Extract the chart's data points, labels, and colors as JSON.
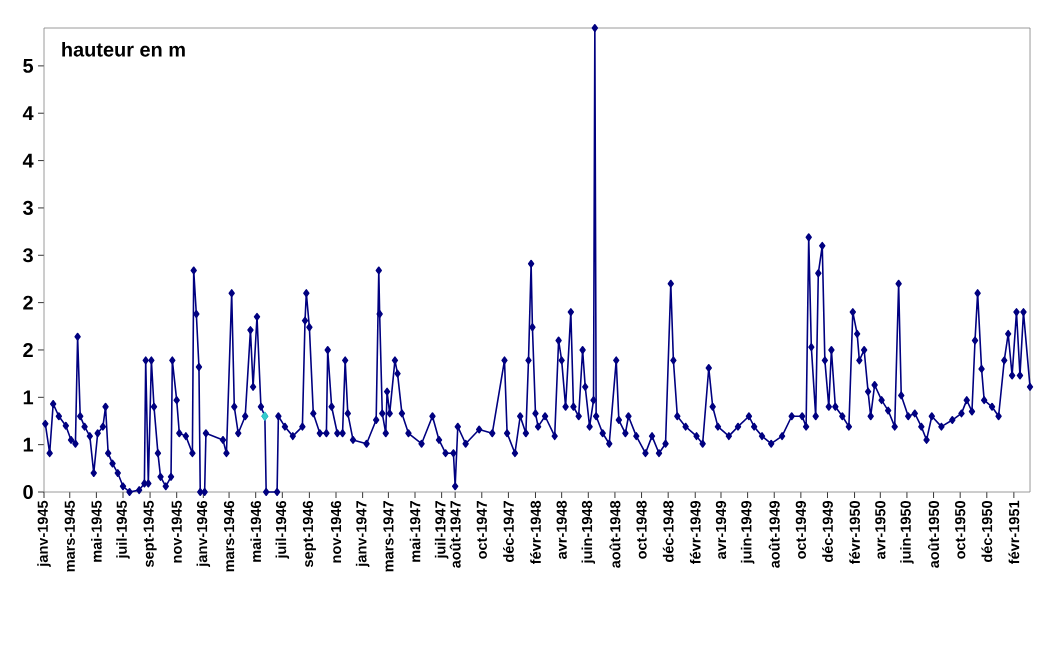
{
  "chart_data": {
    "type": "line",
    "ylabel": "hauteur en m",
    "marker": "diamond",
    "line_style": "solid",
    "xlim": [
      "1945-01-01",
      "1951-03-10"
    ],
    "ylim": [
      0,
      4.9
    ],
    "yticks": [
      0,
      {
        "value": 0.5,
        "label": "1"
      },
      1,
      {
        "value": 1.5,
        "label": "2"
      },
      2,
      {
        "value": 2.5,
        "label": "3"
      },
      3,
      {
        "value": 3.5,
        "label": "4"
      },
      4,
      {
        "value": 4.5,
        "label": "5"
      }
    ],
    "xticks": [
      {
        "value": "1945-01-01",
        "label": "janv-1945"
      },
      {
        "value": "1945-03-01",
        "label": "mars-1945"
      },
      {
        "value": "1945-05-01",
        "label": "mai-1945"
      },
      {
        "value": "1945-07-01",
        "label": "juil-1945"
      },
      {
        "value": "1945-09-01",
        "label": "sept-1945"
      },
      {
        "value": "1945-11-01",
        "label": "nov-1945"
      },
      {
        "value": "1946-01-01",
        "label": "janv-1946"
      },
      {
        "value": "1946-03-01",
        "label": "mars-1946"
      },
      {
        "value": "1946-05-01",
        "label": "mai-1946"
      },
      {
        "value": "1946-07-01",
        "label": "juil-1946"
      },
      {
        "value": "1946-09-01",
        "label": "sept-1946"
      },
      {
        "value": "1946-11-01",
        "label": "nov-1946"
      },
      {
        "value": "1947-01-01",
        "label": "janv-1947"
      },
      {
        "value": "1947-03-01",
        "label": "mars-1947"
      },
      {
        "value": "1947-05-01",
        "label": "mai-1947"
      },
      {
        "value": "1947-07-01",
        "label": "juil-1947"
      },
      {
        "value": "1947-08-01",
        "label": "août-1947"
      },
      {
        "value": "1947-10-01",
        "label": "oct-1947"
      },
      {
        "value": "1947-12-01",
        "label": "déc-1947"
      },
      {
        "value": "1948-02-01",
        "label": "févr-1948"
      },
      {
        "value": "1948-04-01",
        "label": "avr-1948"
      },
      {
        "value": "1948-06-01",
        "label": "juin-1948"
      },
      {
        "value": "1948-08-01",
        "label": "août-1948"
      },
      {
        "value": "1948-10-01",
        "label": "oct-1948"
      },
      {
        "value": "1948-12-01",
        "label": "déc-1948"
      },
      {
        "value": "1949-02-01",
        "label": "févr-1949"
      },
      {
        "value": "1949-04-01",
        "label": "avr-1949"
      },
      {
        "value": "1949-06-01",
        "label": "juin-1949"
      },
      {
        "value": "1949-08-01",
        "label": "août-1949"
      },
      {
        "value": "1949-10-01",
        "label": "oct-1949"
      },
      {
        "value": "1949-12-01",
        "label": "déc-1949"
      },
      {
        "value": "1950-02-01",
        "label": "févr-1950"
      },
      {
        "value": "1950-04-01",
        "label": "avr-1950"
      },
      {
        "value": "1950-06-01",
        "label": "juin-1950"
      },
      {
        "value": "1950-08-01",
        "label": "août-1950"
      },
      {
        "value": "1950-10-01",
        "label": "oct-1950"
      },
      {
        "value": "1950-12-01",
        "label": "déc-1950"
      },
      {
        "value": "1951-02-01",
        "label": "févr-1951"
      }
    ],
    "series": [
      {
        "color": "#000080",
        "x": [
          "1945-01-04",
          "1945-01-14",
          "1945-01-22",
          "1945-02-04",
          "1945-02-20",
          "1945-03-04",
          "1945-03-14",
          "1945-03-19",
          "1945-03-25",
          "1945-04-04",
          "1945-04-16",
          "1945-04-25",
          "1945-05-04",
          "1945-05-16",
          "1945-05-22",
          "1945-05-28",
          "1945-06-07",
          "1945-06-19",
          "1945-07-01",
          "1945-07-16",
          "1945-08-07",
          "1945-08-19",
          "1945-08-22",
          "1945-08-28",
          "1945-09-04",
          "1945-09-10",
          "1945-09-19",
          "1945-09-25",
          "1945-10-07",
          "1945-10-19",
          "1945-10-22",
          "1945-11-01",
          "1945-11-07",
          "1945-11-22",
          "1945-12-07",
          "1945-12-10",
          "1945-12-16",
          "1945-12-22",
          "1945-12-25",
          "1946-01-04",
          "1946-01-07",
          "1946-02-15",
          "1946-02-23",
          "1946-03-07",
          "1946-03-13",
          "1946-03-22",
          "1946-04-07",
          "1946-04-19",
          "1946-04-25",
          "1946-05-04",
          "1946-05-13",
          "1946-05-22",
          "1946-05-25",
          "1946-06-19",
          "1946-06-22",
          "1946-07-07",
          "1946-07-25",
          "1946-08-16",
          "1946-08-22",
          "1946-08-25",
          "1946-09-01",
          "1946-09-10",
          "1946-09-25",
          "1946-10-10",
          "1946-10-13",
          "1946-10-22",
          "1946-11-04",
          "1946-11-16",
          "1946-11-22",
          "1946-11-28",
          "1946-12-10",
          "1947-01-10",
          "1947-02-01",
          "1947-02-07",
          "1947-02-09",
          "1947-02-15",
          "1947-02-23",
          "1947-02-26",
          "1947-03-04",
          "1947-03-16",
          "1947-03-22",
          "1947-04-01",
          "1947-04-16",
          "1947-05-16",
          "1947-06-10",
          "1947-06-25",
          "1947-07-10",
          "1947-07-28",
          "1947-08-01",
          "1947-08-07",
          "1947-08-25",
          "1947-09-25",
          "1947-10-25",
          "1947-11-22",
          "1947-11-28",
          "1947-12-16",
          "1947-12-28",
          "1948-01-10",
          "1948-01-16",
          "1948-01-22",
          "1948-01-25",
          "1948-02-01",
          "1948-02-07",
          "1948-02-23",
          "1948-03-16",
          "1948-03-25",
          "1948-04-01",
          "1948-04-10",
          "1948-04-22",
          "1948-04-28",
          "1948-05-10",
          "1948-05-19",
          "1948-05-25",
          "1948-06-04",
          "1948-06-13",
          "1948-06-16",
          "1948-06-19",
          "1948-07-04",
          "1948-07-19",
          "1948-08-04",
          "1948-08-10",
          "1948-08-25",
          "1948-09-01",
          "1948-09-19",
          "1948-10-10",
          "1948-10-25",
          "1948-11-10",
          "1948-11-25",
          "1948-12-07",
          "1948-12-13",
          "1948-12-22",
          "1949-01-10",
          "1949-02-04",
          "1949-02-18",
          "1949-03-04",
          "1949-03-13",
          "1949-03-25",
          "1949-04-19",
          "1949-05-10",
          "1949-06-04",
          "1949-06-16",
          "1949-07-04",
          "1949-07-25",
          "1949-08-19",
          "1949-09-10",
          "1949-10-04",
          "1949-10-13",
          "1949-10-19",
          "1949-10-25",
          "1949-11-04",
          "1949-11-10",
          "1949-11-19",
          "1949-11-25",
          "1949-12-04",
          "1949-12-10",
          "1949-12-19",
          "1950-01-04",
          "1950-01-19",
          "1950-01-28",
          "1950-02-07",
          "1950-02-12",
          "1950-02-23",
          "1950-03-04",
          "1950-03-10",
          "1950-03-19",
          "1950-04-04",
          "1950-04-19",
          "1950-05-04",
          "1950-05-13",
          "1950-05-19",
          "1950-06-04",
          "1950-06-19",
          "1950-07-04",
          "1950-07-16",
          "1950-07-28",
          "1950-08-19",
          "1950-09-13",
          "1950-10-04",
          "1950-10-16",
          "1950-10-28",
          "1950-11-04",
          "1950-11-10",
          "1950-11-19",
          "1950-11-25",
          "1950-12-13",
          "1950-12-28",
          "1951-01-10",
          "1951-01-19",
          "1951-01-28",
          "1951-02-07",
          "1951-02-15",
          "1951-02-23",
          "1951-03-10"
        ],
        "values": [
          0.72,
          0.41,
          0.93,
          0.8,
          0.7,
          0.55,
          0.51,
          1.64,
          0.8,
          0.69,
          0.59,
          0.2,
          0.62,
          0.69,
          0.9,
          0.41,
          0.3,
          0.2,
          0.06,
          0.0,
          0.02,
          0.09,
          1.39,
          0.09,
          1.39,
          0.9,
          0.41,
          0.16,
          0.06,
          0.16,
          1.39,
          0.97,
          0.62,
          0.59,
          0.41,
          2.34,
          1.88,
          1.32,
          0,
          0,
          0.62,
          0.55,
          0.41,
          2.1,
          0.9,
          0.62,
          0.8,
          1.71,
          1.11,
          1.85,
          0.9,
          0.8,
          0,
          0,
          0.8,
          0.69,
          0.59,
          0.69,
          1.81,
          2.1,
          1.74,
          0.83,
          0.62,
          0.62,
          1.5,
          0.9,
          0.62,
          0.62,
          1.39,
          0.83,
          0.55,
          0.51,
          0.76,
          2.34,
          1.88,
          0.83,
          0.62,
          1.06,
          0.83,
          1.39,
          1.25,
          0.83,
          0.62,
          0.51,
          0.8,
          0.55,
          0.41,
          0.41,
          0.06,
          0.69,
          0.51,
          0.66,
          0.62,
          1.39,
          0.62,
          0.41,
          0.8,
          0.62,
          1.39,
          2.41,
          1.74,
          0.83,
          0.69,
          0.8,
          0.59,
          1.6,
          1.39,
          0.9,
          1.9,
          0.9,
          0.8,
          1.5,
          1.11,
          0.69,
          0.97,
          4.9,
          0.8,
          0.62,
          0.51,
          1.39,
          0.76,
          0.62,
          0.8,
          0.59,
          0.41,
          0.59,
          0.41,
          0.51,
          2.2,
          1.39,
          0.8,
          0.69,
          0.59,
          0.51,
          1.31,
          0.9,
          0.69,
          0.59,
          0.69,
          0.8,
          0.69,
          0.59,
          0.51,
          0.59,
          0.8,
          0.8,
          0.69,
          2.69,
          1.53,
          0.8,
          2.31,
          2.6,
          1.39,
          0.9,
          1.5,
          0.9,
          0.8,
          0.69,
          1.9,
          1.67,
          1.39,
          1.5,
          1.06,
          0.8,
          1.13,
          0.97,
          0.86,
          0.69,
          2.2,
          1.02,
          0.8,
          0.83,
          0.69,
          0.55,
          0.8,
          0.69,
          0.76,
          0.83,
          0.97,
          0.85,
          1.6,
          2.1,
          1.3,
          0.97,
          0.9,
          0.8,
          1.39,
          1.67,
          1.23,
          1.9,
          1.23,
          1.9,
          1.11
        ]
      },
      {
        "type": "scatter",
        "color": "#33cccc",
        "x": [
          "1946-05-22"
        ],
        "values": [
          0.8
        ]
      }
    ]
  }
}
